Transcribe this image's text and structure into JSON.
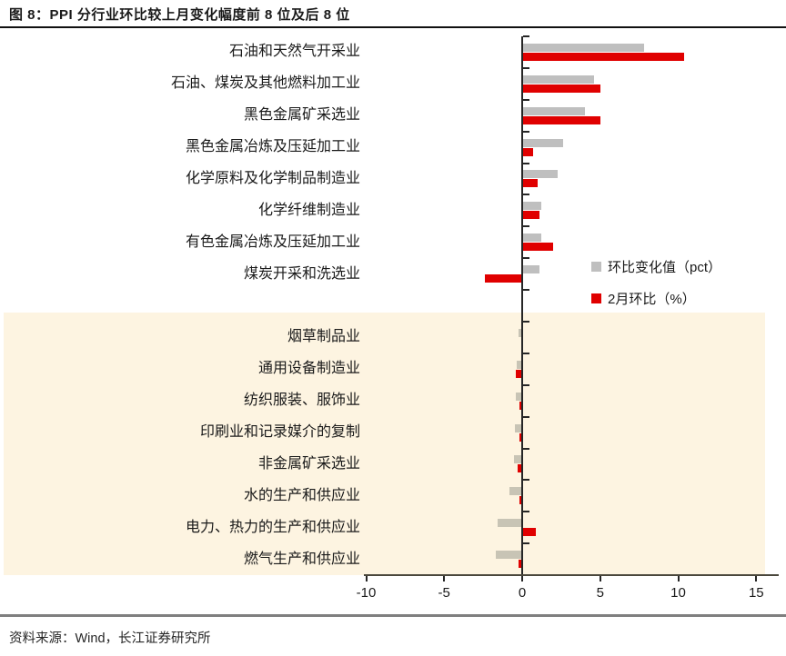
{
  "figure": {
    "title": "图 8：PPI 分行业环比较上月变化幅度前 8 位及后 8 位",
    "source_note": "资料来源：Wind，长江证券研究所"
  },
  "colors": {
    "series_gray": "#BFBFBF",
    "series_gray_on_band": "#C8C4B5",
    "series_red": "#E00000",
    "highlight_band": "#FDF4E1",
    "axis": "#262626",
    "footer_rule": "#7F7F7F"
  },
  "chart_data": {
    "type": "bar",
    "orientation": "horizontal",
    "title": "图 8：PPI 分行业环比较上月变化幅度前 8 位及后 8 位",
    "xlim": [
      -10,
      15
    ],
    "x_ticks": [
      -10,
      -5,
      0,
      5,
      10,
      15
    ],
    "grid": false,
    "legend_position": "middle-right",
    "gap_after_index": 7,
    "highlight": "bottom 8 categories shaded with cream band",
    "categories": [
      "石油和天然气开采业",
      "石油、煤炭及其他燃料加工业",
      "黑色金属矿采选业",
      "黑色金属冶炼及压延加工业",
      "化学原料及化学制品制造业",
      "化学纤维制造业",
      "有色金属冶炼及压延加工业",
      "煤炭开采和洗选业",
      "烟草制品业",
      "通用设备制造业",
      "纺织服装、服饰业",
      "印刷业和记录媒介的复制",
      "非金属矿采选业",
      "水的生产和供应业",
      "电力、热力的生产和供应业",
      "燃气生产和供应业"
    ],
    "series": [
      {
        "name": "环比变化值（pct）",
        "color": "#BFBFBF",
        "values": [
          7.8,
          4.6,
          4.0,
          2.6,
          2.25,
          1.2,
          1.2,
          1.1,
          -0.25,
          -0.35,
          -0.4,
          -0.45,
          -0.55,
          -0.8,
          -1.6,
          -1.7
        ]
      },
      {
        "name": "2月环比（%）",
        "color": "#E00000",
        "values": [
          10.4,
          5.0,
          5.0,
          0.7,
          1.0,
          1.1,
          2.0,
          -2.4,
          0.0,
          -0.4,
          -0.15,
          -0.2,
          -0.3,
          -0.2,
          0.9,
          -0.25
        ]
      }
    ]
  }
}
